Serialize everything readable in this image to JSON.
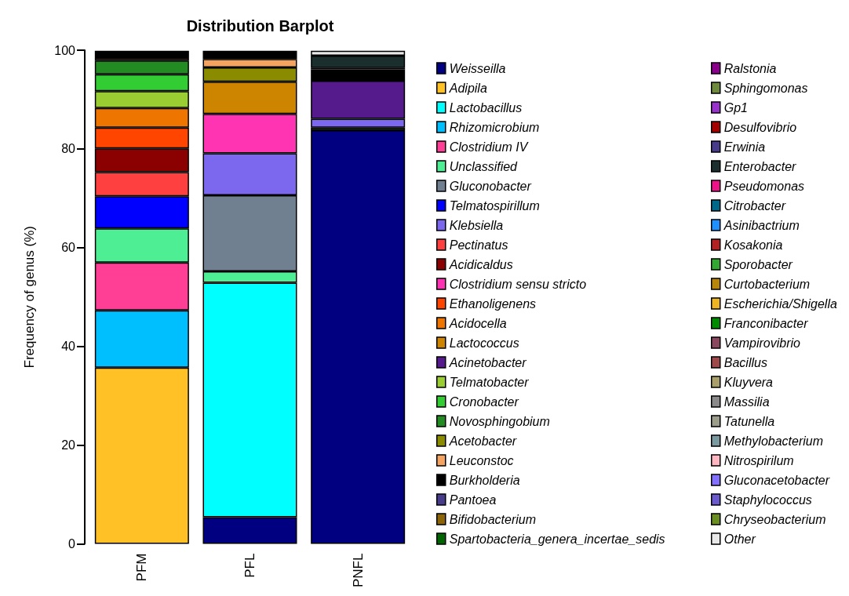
{
  "chart_data": {
    "type": "bar",
    "stacked": true,
    "title": "Distribution Barplot",
    "ylabel": "Frequency of genus (%)",
    "categories": [
      "PFM",
      "PFL",
      "PNFL"
    ],
    "ylim": [
      0,
      100
    ],
    "yticks": [
      0,
      20,
      40,
      60,
      80,
      100
    ],
    "grid": false,
    "legend": "right",
    "series": [
      {
        "name": "Weisseilla",
        "color": "#000080",
        "values": [
          null,
          5.4,
          83.8
        ]
      },
      {
        "name": "Adipila",
        "color": "#ffc125",
        "values": [
          35.7,
          null,
          null
        ]
      },
      {
        "name": "Lactobacillus",
        "color": "#00ffff",
        "values": [
          null,
          47.5,
          null
        ]
      },
      {
        "name": "Rhizomicrobium",
        "color": "#00bfff",
        "values": [
          11.6,
          null,
          null
        ]
      },
      {
        "name": "Clostridium IV",
        "color": "#ff3e96",
        "values": [
          9.7,
          null,
          null
        ]
      },
      {
        "name": "Unclassified",
        "color": "#4eee94",
        "values": [
          6.9,
          2.3,
          0.5
        ]
      },
      {
        "name": "Gluconobacter",
        "color": "#708090",
        "values": [
          null,
          15.4,
          null
        ]
      },
      {
        "name": "Telmatospirillum",
        "color": "#0000ff",
        "values": [
          6.5,
          null,
          null
        ]
      },
      {
        "name": "Klebsiella",
        "color": "#7b68ee",
        "values": [
          null,
          8.5,
          1.8
        ]
      },
      {
        "name": "Pectinatus",
        "color": "#ff4040",
        "values": [
          4.9,
          null,
          null
        ]
      },
      {
        "name": "Acidicaldus",
        "color": "#8b0000",
        "values": [
          4.8,
          null,
          null
        ]
      },
      {
        "name": "Clostridium sensu stricto",
        "color": "#ff34b3",
        "values": [
          null,
          8.0,
          null
        ]
      },
      {
        "name": "Ethanoligenens",
        "color": "#ff4500",
        "values": [
          4.2,
          null,
          null
        ]
      },
      {
        "name": "Acidocella",
        "color": "#ee7600",
        "values": [
          4.0,
          null,
          null
        ]
      },
      {
        "name": "Lactococcus",
        "color": "#cd8500",
        "values": [
          null,
          6.5,
          null
        ]
      },
      {
        "name": "Acinetobacter",
        "color": "#551a8b",
        "values": [
          null,
          null,
          7.7
        ]
      },
      {
        "name": "Telmatobacter",
        "color": "#9acd32",
        "values": [
          3.4,
          null,
          null
        ]
      },
      {
        "name": "Cronobacter",
        "color": "#32cd32",
        "values": [
          3.4,
          null,
          null
        ]
      },
      {
        "name": "Novosphingobium",
        "color": "#228b22",
        "values": [
          2.8,
          null,
          null
        ]
      },
      {
        "name": "Acetobacter",
        "color": "#8b8b00",
        "values": [
          null,
          2.9,
          null
        ]
      },
      {
        "name": "Leuconstoc",
        "color": "#f4a460",
        "values": [
          0.5,
          1.7,
          null
        ]
      },
      {
        "name": "Burkholderia",
        "color": "#000000",
        "values": [
          1.5,
          1.7,
          2.3
        ]
      },
      {
        "name": "Pantoea",
        "color": "#483d8b",
        "values": [
          null,
          null,
          0.3
        ]
      },
      {
        "name": "Bifidobacterium",
        "color": "#8b6508",
        "values": [
          null,
          null,
          null
        ]
      },
      {
        "name": "Spartobacteria_genera_incertae_sedis",
        "color": "#006400",
        "values": [
          null,
          null,
          null
        ]
      },
      {
        "name": "Ralstonia",
        "color": "#8b008b",
        "values": [
          null,
          null,
          null
        ]
      },
      {
        "name": "Sphingomonas",
        "color": "#6e8b3d",
        "values": [
          null,
          null,
          null
        ]
      },
      {
        "name": "Gp1",
        "color": "#9932cc",
        "values": [
          null,
          null,
          null
        ]
      },
      {
        "name": "Desulfovibrio",
        "color": "#a50000",
        "values": [
          null,
          null,
          null
        ]
      },
      {
        "name": "Erwinia",
        "color": "#473c8b",
        "values": [
          null,
          null,
          null
        ]
      },
      {
        "name": "Enterobacter",
        "color": "#1c2f2f",
        "values": [
          null,
          null,
          2.5
        ]
      },
      {
        "name": "Pseudomonas",
        "color": "#ee1289",
        "values": [
          null,
          null,
          null
        ]
      },
      {
        "name": "Citrobacter",
        "color": "#00688b",
        "values": [
          null,
          null,
          null
        ]
      },
      {
        "name": "Asinibactrium",
        "color": "#1e90ff",
        "values": [
          null,
          null,
          null
        ]
      },
      {
        "name": "Kosakonia",
        "color": "#b22222",
        "values": [
          null,
          null,
          null
        ]
      },
      {
        "name": "Sporobacter",
        "color": "#32a832",
        "values": [
          null,
          null,
          null
        ]
      },
      {
        "name": "Curtobacterium",
        "color": "#b8860b",
        "values": [
          null,
          null,
          null
        ]
      },
      {
        "name": "Escherichia/Shigella",
        "color": "#eeb422",
        "values": [
          null,
          null,
          null
        ]
      },
      {
        "name": "Franconibacter",
        "color": "#008b00",
        "values": [
          null,
          null,
          null
        ]
      },
      {
        "name": "Vampirovibrio",
        "color": "#8b475d",
        "values": [
          null,
          null,
          null
        ]
      },
      {
        "name": "Bacillus",
        "color": "#9e4a4a",
        "values": [
          null,
          null,
          null
        ]
      },
      {
        "name": "Kluyvera",
        "color": "#a89f6a",
        "values": [
          null,
          null,
          null
        ]
      },
      {
        "name": "Massilia",
        "color": "#8b8989",
        "values": [
          null,
          null,
          null
        ]
      },
      {
        "name": "Tatunella",
        "color": "#9c9c8a",
        "values": [
          null,
          null,
          null
        ]
      },
      {
        "name": "Methylobacterium",
        "color": "#7a9aa0",
        "values": [
          null,
          null,
          null
        ]
      },
      {
        "name": "Nitrospirilum",
        "color": "#ffb6c1",
        "values": [
          null,
          null,
          null
        ]
      },
      {
        "name": "Gluconacetobacter",
        "color": "#8470ff",
        "values": [
          null,
          null,
          null
        ]
      },
      {
        "name": "Staphylococcus",
        "color": "#6a5acd",
        "values": [
          null,
          null,
          null
        ]
      },
      {
        "name": "Chryseobacterium",
        "color": "#6b8e23",
        "values": [
          null,
          null,
          null
        ]
      },
      {
        "name": "Other",
        "color": "#e8e8e8",
        "values": [
          null,
          null,
          1.0
        ]
      }
    ]
  }
}
